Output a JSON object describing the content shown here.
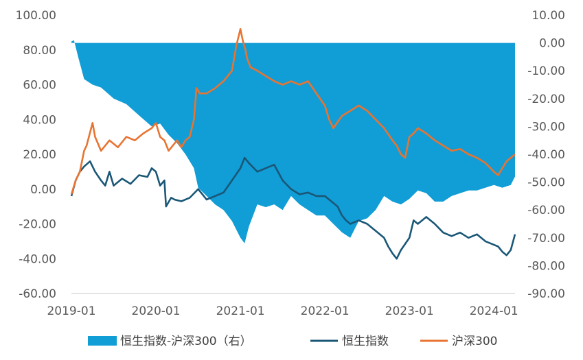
{
  "chart_data": {
    "type": "line",
    "title": "",
    "xlabel": "",
    "ylabel": "",
    "x_ticks": [
      "2019-01",
      "2020-01",
      "2021-01",
      "2022-01",
      "2023-01",
      "2024-01"
    ],
    "y_left": {
      "range": [
        -60,
        100
      ],
      "ticks": [
        "100.00",
        "80.00",
        "60.00",
        "40.00",
        "20.00",
        "0.00",
        "-20.00",
        "-40.00",
        "-60.00"
      ]
    },
    "y_right": {
      "range": [
        -90,
        10
      ],
      "ticks": [
        "10.00",
        "0.00",
        "-10.00",
        "-20.00",
        "-30.00",
        "-40.00",
        "-50.00",
        "-60.00",
        "-70.00",
        "-80.00",
        "-90.00"
      ]
    },
    "grid": false,
    "legend": "bottom",
    "colors": {
      "diff": "#119DD6",
      "hsi": "#1A5777",
      "csi": "#E87431"
    },
    "series": [
      {
        "name": "恒生指数-沪深300（右）",
        "type": "area",
        "axis": "right",
        "x": [
          2019.0,
          2019.03,
          2019.08,
          2019.15,
          2019.25,
          2019.35,
          2019.5,
          2019.65,
          2019.8,
          2019.95,
          2020.05,
          2020.15,
          2020.25,
          2020.35,
          2020.45,
          2020.5,
          2020.6,
          2020.7,
          2020.8,
          2020.9,
          2021.0,
          2021.05,
          2021.1,
          2021.2,
          2021.3,
          2021.4,
          2021.5,
          2021.6,
          2021.7,
          2021.8,
          2021.9,
          2022.0,
          2022.1,
          2022.2,
          2022.3,
          2022.4,
          2022.5,
          2022.6,
          2022.7,
          2022.8,
          2022.9,
          2023.0,
          2023.1,
          2023.2,
          2023.3,
          2023.4,
          2023.5,
          2023.6,
          2023.7,
          2023.8,
          2023.9,
          2024.0,
          2024.1,
          2024.2,
          2024.25
        ],
        "y": [
          0.5,
          1,
          -5,
          -13,
          -15,
          -16,
          -20,
          -22,
          -26,
          -30,
          -29,
          -33,
          -36,
          -40,
          -45,
          -52,
          -55,
          -58,
          -60,
          -64,
          -70,
          -72,
          -66,
          -58,
          -59,
          -58,
          -60,
          -55,
          -58,
          -60,
          -62,
          -62,
          -65,
          -68,
          -70,
          -64,
          -63,
          -60,
          -55,
          -57,
          -58,
          -56,
          -53,
          -54,
          -57,
          -57,
          -55,
          -54,
          -53,
          -53,
          -52,
          -51,
          -52,
          -51,
          -48
        ]
      },
      {
        "name": "恒生指数",
        "type": "line",
        "axis": "left",
        "x": [
          2019.0,
          2019.05,
          2019.1,
          2019.15,
          2019.22,
          2019.28,
          2019.35,
          2019.4,
          2019.45,
          2019.5,
          2019.6,
          2019.7,
          2019.8,
          2019.9,
          2019.95,
          2020.0,
          2020.05,
          2020.1,
          2020.12,
          2020.18,
          2020.22,
          2020.3,
          2020.4,
          2020.5,
          2020.6,
          2020.7,
          2020.8,
          2020.9,
          2021.0,
          2021.05,
          2021.1,
          2021.2,
          2021.3,
          2021.4,
          2021.5,
          2021.6,
          2021.7,
          2021.8,
          2021.9,
          2022.0,
          2022.05,
          2022.1,
          2022.15,
          2022.2,
          2022.25,
          2022.3,
          2022.4,
          2022.5,
          2022.6,
          2022.7,
          2022.75,
          2022.8,
          2022.85,
          2022.9,
          2023.0,
          2023.05,
          2023.1,
          2023.2,
          2023.3,
          2023.4,
          2023.5,
          2023.6,
          2023.7,
          2023.8,
          2023.9,
          2024.0,
          2024.05,
          2024.1,
          2024.15,
          2024.2,
          2024.25
        ],
        "y": [
          -4,
          5,
          10,
          13,
          16,
          10,
          5,
          2,
          10,
          2,
          6,
          3,
          8,
          7,
          12,
          10,
          2,
          5,
          -10,
          -5,
          -6,
          -7,
          -5,
          0,
          -6,
          -4,
          -2,
          5,
          12,
          18,
          15,
          10,
          12,
          14,
          5,
          0,
          -3,
          -2,
          -4,
          -4,
          -6,
          -8,
          -10,
          -15,
          -18,
          -20,
          -18,
          -20,
          -24,
          -28,
          -33,
          -37,
          -40,
          -35,
          -28,
          -18,
          -20,
          -16,
          -20,
          -25,
          -27,
          -25,
          -28,
          -26,
          -30,
          -32,
          -33,
          -36,
          -38,
          -35,
          -26
        ]
      },
      {
        "name": "沪深300",
        "type": "line",
        "axis": "left",
        "x": [
          2019.0,
          2019.05,
          2019.1,
          2019.15,
          2019.18,
          2019.25,
          2019.28,
          2019.35,
          2019.45,
          2019.55,
          2019.65,
          2019.75,
          2019.85,
          2019.95,
          2020.0,
          2020.05,
          2020.1,
          2020.15,
          2020.2,
          2020.25,
          2020.3,
          2020.35,
          2020.4,
          2020.45,
          2020.48,
          2020.52,
          2020.6,
          2020.7,
          2020.8,
          2020.9,
          2020.95,
          2021.0,
          2021.03,
          2021.06,
          2021.08,
          2021.12,
          2021.2,
          2021.3,
          2021.4,
          2021.5,
          2021.6,
          2021.7,
          2021.8,
          2021.9,
          2022.0,
          2022.05,
          2022.1,
          2022.2,
          2022.3,
          2022.4,
          2022.5,
          2022.6,
          2022.7,
          2022.8,
          2022.85,
          2022.9,
          2022.95,
          2023.0,
          2023.05,
          2023.1,
          2023.2,
          2023.3,
          2023.4,
          2023.5,
          2023.6,
          2023.7,
          2023.8,
          2023.9,
          2024.0,
          2024.05,
          2024.1,
          2024.15,
          2024.2,
          2024.25
        ],
        "y": [
          -3,
          5,
          10,
          22,
          25,
          38,
          30,
          22,
          28,
          24,
          30,
          28,
          32,
          35,
          38,
          30,
          28,
          22,
          25,
          28,
          24,
          28,
          30,
          40,
          58,
          55,
          55,
          58,
          62,
          68,
          82,
          92,
          85,
          80,
          75,
          70,
          68,
          65,
          62,
          60,
          62,
          60,
          62,
          55,
          48,
          40,
          35,
          42,
          45,
          48,
          45,
          40,
          35,
          28,
          25,
          20,
          18,
          30,
          32,
          35,
          32,
          28,
          25,
          22,
          23,
          20,
          18,
          15,
          10,
          8,
          12,
          16,
          18,
          20
        ]
      }
    ]
  }
}
